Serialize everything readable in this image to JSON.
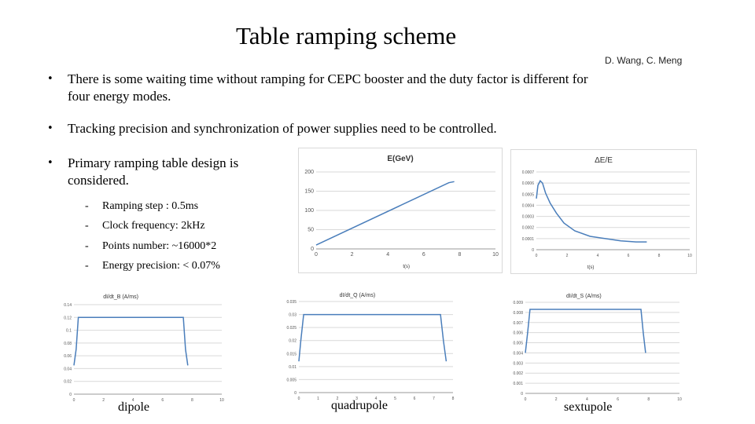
{
  "slide": {
    "title": "Table ramping scheme",
    "authors": "D. Wang, C. Meng",
    "bullets": [
      "There is some waiting time without ramping for CEPC booster and the duty factor is different for four energy modes.",
      "Tracking precision and synchronization of power supplies need to be controlled.",
      "Primary ramping table design is considered."
    ],
    "sub_items": [
      "Ramping step : 0.5ms",
      "Clock frequency: 2kHz",
      "Points number: ~16000*2",
      "Energy precision: < 0.07%"
    ],
    "captions": {
      "dipole": "dipole",
      "quadrupole": "quadrupole",
      "sextupole": "sextupole"
    }
  },
  "chart_data": [
    {
      "id": "energy",
      "type": "line",
      "title": "E(GeV)",
      "xlabel": "t(s)",
      "ylabel": "",
      "xlim": [
        0,
        10
      ],
      "ylim": [
        0,
        200
      ],
      "xticks": [
        "0",
        "2",
        "4",
        "6",
        "8",
        "10"
      ],
      "yticks": [
        "0",
        "50",
        "100",
        "150",
        "200"
      ],
      "grid": true,
      "color": "#4a7ebb",
      "series": [
        {
          "x": [
            0,
            7.4,
            7.7
          ],
          "y": [
            10,
            172,
            175
          ]
        }
      ]
    },
    {
      "id": "dEE",
      "type": "line",
      "title": "ΔE/E",
      "xlabel": "t(s)",
      "ylabel": "",
      "xlim": [
        0,
        10
      ],
      "ylim": [
        0,
        0.0007
      ],
      "xticks": [
        "0",
        "2",
        "4",
        "6",
        "8",
        "10"
      ],
      "yticks": [
        "0",
        "0.0001",
        "0.0002",
        "0.0003",
        "0.0004",
        "0.0005",
        "0.0006",
        "0.0007"
      ],
      "grid": true,
      "color": "#4a7ebb",
      "series": [
        {
          "x": [
            0,
            0.1,
            0.25,
            0.4,
            0.6,
            0.9,
            1.3,
            1.8,
            2.5,
            3.5,
            4.5,
            5.5,
            6.5,
            7.2
          ],
          "y": [
            0.00046,
            0.00058,
            0.00062,
            0.0006,
            0.00051,
            0.00042,
            0.00033,
            0.00024,
            0.00017,
            0.00012,
            0.0001,
            8e-05,
            7e-05,
            7e-05
          ]
        }
      ]
    },
    {
      "id": "dipole",
      "type": "line",
      "title": "dI/dt_B (A/ms)",
      "xlabel": "",
      "ylabel": "",
      "xlim": [
        0,
        10
      ],
      "ylim": [
        0,
        0.14
      ],
      "xticks": [
        "0",
        "2",
        "4",
        "6",
        "8",
        "10"
      ],
      "yticks": [
        "0",
        "0.02",
        "0.04",
        "0.06",
        "0.08",
        "0.1",
        "0.12",
        "0.14"
      ],
      "grid": true,
      "color": "#4a7ebb",
      "series": [
        {
          "x": [
            0,
            0.15,
            0.3,
            0.5,
            7.2,
            7.4,
            7.55,
            7.7
          ],
          "y": [
            0.045,
            0.07,
            0.12,
            0.12,
            0.12,
            0.12,
            0.07,
            0.045
          ]
        }
      ]
    },
    {
      "id": "quadrupole",
      "type": "line",
      "title": "dI/dt_Q (A/ms)",
      "xlabel": "",
      "ylabel": "",
      "xlim": [
        0,
        8
      ],
      "ylim": [
        0,
        0.035
      ],
      "xticks": [
        "0",
        "1",
        "2",
        "3",
        "4",
        "5",
        "6",
        "7",
        "8"
      ],
      "yticks": [
        "0",
        "0.005",
        "0.01",
        "0.015",
        "0.02",
        "0.025",
        "0.03",
        "0.035"
      ],
      "grid": true,
      "color": "#4a7ebb",
      "series": [
        {
          "x": [
            0,
            0.1,
            0.25,
            0.4,
            7.2,
            7.35,
            7.5,
            7.65
          ],
          "y": [
            0.012,
            0.02,
            0.03,
            0.03,
            0.03,
            0.03,
            0.02,
            0.012
          ]
        }
      ]
    },
    {
      "id": "sextupole",
      "type": "line",
      "title": "dI/dt_S (A/ms)",
      "xlabel": "",
      "ylabel": "",
      "xlim": [
        0,
        10
      ],
      "ylim": [
        0,
        0.009
      ],
      "xticks": [
        "0",
        "2",
        "4",
        "6",
        "8",
        "10"
      ],
      "yticks": [
        "0",
        "0.001",
        "0.002",
        "0.003",
        "0.004",
        "0.005",
        "0.006",
        "0.007",
        "0.008",
        "0.009"
      ],
      "grid": true,
      "color": "#4a7ebb",
      "series": [
        {
          "x": [
            0,
            0.15,
            0.3,
            0.5,
            7.3,
            7.5,
            7.65,
            7.8
          ],
          "y": [
            0.004,
            0.006,
            0.0083,
            0.0083,
            0.0083,
            0.0083,
            0.006,
            0.004
          ]
        }
      ]
    }
  ]
}
